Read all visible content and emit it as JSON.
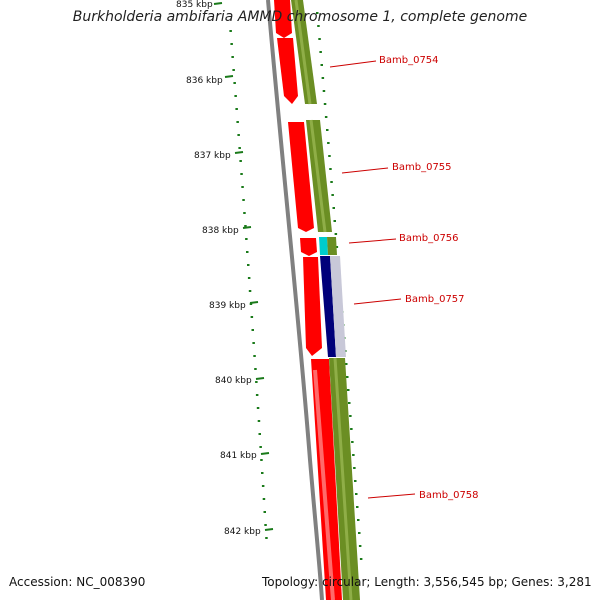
{
  "title": "Burkholderia ambifaria AMMD chromosome 1, complete genome",
  "footer": {
    "accession": "Accession: NC_008390",
    "topology": "Topology: circular; Length: 3,556,545 bp; Genes: 3,281"
  },
  "scale_labels": [
    "835 kbp",
    "836 kbp",
    "837 kbp",
    "838 kbp",
    "839 kbp",
    "840 kbp",
    "841 kbp",
    "842 kbp"
  ],
  "gene_labels": [
    "Bamb_0754",
    "Bamb_0755",
    "Bamb_0756",
    "Bamb_0757",
    "Bamb_0758"
  ],
  "colors": {
    "cds_forward": "#ff0000",
    "cds_reverse": "#6b8e23",
    "backbone": "#808080",
    "feature_cyan": "#00cccc",
    "feature_navy": "#00007a",
    "feature_grey": "#c8c8d8",
    "label_red": "#cc0000",
    "tick_green": "#1a7a1a"
  }
}
